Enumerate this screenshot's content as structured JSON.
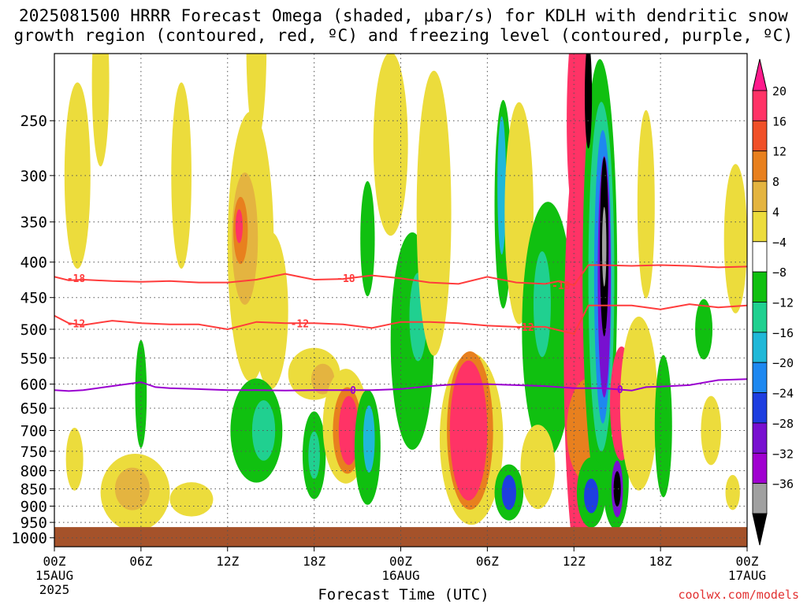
{
  "title": {
    "line1": "2025081500 HRRR Forecast Omega (shaded, μbar/s) for KDLH with dendritic snow",
    "line2": "growth region (contoured, red, ºC) and freezing level (contoured, purple, ºC)"
  },
  "credit": "coolwx.com/models",
  "chart_data": {
    "type": "heatmap",
    "xlabel": "Forecast Time (UTC)",
    "ylabel": "",
    "x_range_hours": [
      0,
      48
    ],
    "y_range_mb": [
      200,
      1030
    ],
    "y_scale": "log-pressure (top=low)",
    "y_ticks": [
      250,
      300,
      350,
      400,
      450,
      500,
      550,
      600,
      650,
      700,
      750,
      800,
      850,
      900,
      950,
      1000
    ],
    "x_ticks": [
      {
        "h": 0,
        "label": "00Z",
        "sub": "15AUG",
        "sub2": "2025"
      },
      {
        "h": 6,
        "label": "06Z"
      },
      {
        "h": 12,
        "label": "12Z"
      },
      {
        "h": 18,
        "label": "18Z"
      },
      {
        "h": 24,
        "label": "00Z",
        "sub": "16AUG"
      },
      {
        "h": 30,
        "label": "06Z"
      },
      {
        "h": 36,
        "label": "12Z"
      },
      {
        "h": 42,
        "label": "18Z"
      },
      {
        "h": 48,
        "label": "00Z",
        "sub": "17AUG"
      }
    ],
    "grid": true,
    "colorbar": {
      "labels": [
        "20",
        "16",
        "12",
        "8",
        "4",
        "−4",
        "−8",
        "−12",
        "−16",
        "−20",
        "−24",
        "−28",
        "−32",
        "−36"
      ],
      "colors": [
        "#ff3366",
        "#f05028",
        "#e8801e",
        "#e4b440",
        "#ecdc3c",
        "#ffffff",
        "#10c010",
        "#20d090",
        "#20b8d8",
        "#1e88f0",
        "#1e3ee0",
        "#7810d0",
        "#a000d0",
        "#a0a0a0",
        "#000000"
      ],
      "top_color": "#ff1a8c"
    },
    "ground_pressure_mb": 965,
    "ground_color": "#a5522a",
    "contours": [
      {
        "label": "-18",
        "color": "#ff3c3c",
        "points": [
          [
            0,
            420
          ],
          [
            1,
            425
          ],
          [
            2,
            424
          ],
          [
            4,
            426
          ],
          [
            6,
            427
          ],
          [
            8,
            426
          ],
          [
            10,
            428
          ],
          [
            12,
            428
          ],
          [
            14,
            424
          ],
          [
            16,
            416
          ],
          [
            18,
            424
          ],
          [
            20,
            423
          ],
          [
            22,
            418
          ],
          [
            24,
            422
          ],
          [
            26,
            428
          ],
          [
            28,
            430
          ],
          [
            30,
            420
          ],
          [
            32,
            428
          ],
          [
            34,
            430
          ],
          [
            35,
            426
          ],
          [
            36,
            432
          ],
          [
            37,
            404
          ],
          [
            38,
            404
          ],
          [
            40,
            405
          ],
          [
            42,
            404
          ],
          [
            44,
            405
          ],
          [
            46,
            407
          ],
          [
            48,
            406
          ]
        ]
      },
      {
        "label": "-12",
        "color": "#ff3c3c",
        "points": [
          [
            0,
            478
          ],
          [
            1,
            490
          ],
          [
            2,
            493
          ],
          [
            4,
            486
          ],
          [
            6,
            490
          ],
          [
            8,
            492
          ],
          [
            10,
            492
          ],
          [
            12,
            500
          ],
          [
            14,
            488
          ],
          [
            16,
            490
          ],
          [
            18,
            490
          ],
          [
            20,
            492
          ],
          [
            22,
            498
          ],
          [
            24,
            488
          ],
          [
            26,
            488
          ],
          [
            28,
            490
          ],
          [
            30,
            494
          ],
          [
            32,
            496
          ],
          [
            34,
            496
          ],
          [
            36,
            508
          ],
          [
            37,
            462
          ],
          [
            38,
            462
          ],
          [
            40,
            462
          ],
          [
            42,
            468
          ],
          [
            44,
            460
          ],
          [
            46,
            465
          ],
          [
            48,
            462
          ]
        ]
      },
      {
        "label": "0",
        "color": "#9a00d0",
        "points": [
          [
            0,
            612
          ],
          [
            1,
            614
          ],
          [
            2,
            612
          ],
          [
            4,
            604
          ],
          [
            6,
            596
          ],
          [
            7,
            606
          ],
          [
            8,
            608
          ],
          [
            10,
            610
          ],
          [
            12,
            612
          ],
          [
            14,
            612
          ],
          [
            16,
            613
          ],
          [
            18,
            612
          ],
          [
            20,
            612
          ],
          [
            22,
            612
          ],
          [
            24,
            610
          ],
          [
            26,
            604
          ],
          [
            28,
            600
          ],
          [
            30,
            600
          ],
          [
            32,
            602
          ],
          [
            34,
            604
          ],
          [
            36,
            608
          ],
          [
            38,
            608
          ],
          [
            40,
            613
          ],
          [
            41,
            606
          ],
          [
            42,
            605
          ],
          [
            44,
            602
          ],
          [
            46,
            592
          ],
          [
            48,
            590
          ]
        ]
      }
    ],
    "contour_labels": [
      {
        "text": "-18",
        "h": 1.5,
        "p": 422
      },
      {
        "text": "-18",
        "h": 20.2,
        "p": 422
      },
      {
        "text": "-18",
        "h": 35.1,
        "p": 432
      },
      {
        "text": "-12",
        "h": 1.5,
        "p": 490
      },
      {
        "text": "-12",
        "h": 17.0,
        "p": 490
      },
      {
        "text": "-12",
        "h": 32.6,
        "p": 496
      },
      {
        "text": "0",
        "h": 20.7,
        "p": 612
      },
      {
        "text": "0",
        "h": 39.2,
        "p": 610
      }
    ],
    "shaded_features": [
      {
        "level": 4,
        "h": 1.6,
        "p": 300,
        "dh": 0.9,
        "dp": 90
      },
      {
        "level": 4,
        "h": 3.2,
        "p": 220,
        "dh": 0.6,
        "dp": 60
      },
      {
        "level": 4,
        "h": 5.6,
        "p": 860,
        "dh": 2.4,
        "dp": 110
      },
      {
        "level": 8,
        "h": 5.4,
        "p": 850,
        "dh": 1.2,
        "dp": 60
      },
      {
        "level": 4,
        "h": 1.4,
        "p": 770,
        "dh": 0.6,
        "dp": 80
      },
      {
        "level": 4,
        "h": 8.8,
        "p": 300,
        "dh": 0.7,
        "dp": 90
      },
      {
        "level": -8,
        "h": 6.0,
        "p": 620,
        "dh": 0.4,
        "dp": 110
      },
      {
        "level": 4,
        "h": 13.6,
        "p": 380,
        "dh": 1.6,
        "dp": 160
      },
      {
        "level": 8,
        "h": 13.2,
        "p": 370,
        "dh": 0.9,
        "dp": 80
      },
      {
        "level": 12,
        "h": 12.9,
        "p": 360,
        "dh": 0.5,
        "dp": 40
      },
      {
        "level": 20,
        "h": 12.8,
        "p": 355,
        "dh": 0.25,
        "dp": 20
      },
      {
        "level": 4,
        "h": 15.0,
        "p": 470,
        "dh": 1.2,
        "dp": 120
      },
      {
        "level": 4,
        "h": 14.0,
        "p": 195,
        "dh": 0.7,
        "dp": 60
      },
      {
        "level": -8,
        "h": 14.0,
        "p": 700,
        "dh": 1.8,
        "dp": 120
      },
      {
        "level": -12,
        "h": 14.5,
        "p": 700,
        "dh": 0.8,
        "dp": 70
      },
      {
        "level": 4,
        "h": 9.5,
        "p": 880,
        "dh": 1.5,
        "dp": 50
      },
      {
        "level": 4,
        "h": 18.0,
        "p": 580,
        "dh": 1.8,
        "dp": 50
      },
      {
        "level": 8,
        "h": 18.6,
        "p": 590,
        "dh": 0.8,
        "dp": 30
      },
      {
        "level": -8,
        "h": 18.0,
        "p": 760,
        "dh": 0.8,
        "dp": 110
      },
      {
        "level": -12,
        "h": 18.0,
        "p": 760,
        "dh": 0.4,
        "dp": 60
      },
      {
        "level": 4,
        "h": 20.2,
        "p": 690,
        "dh": 1.6,
        "dp": 130
      },
      {
        "level": 12,
        "h": 20.3,
        "p": 700,
        "dh": 1.0,
        "dp": 100
      },
      {
        "level": 20,
        "h": 20.4,
        "p": 700,
        "dh": 0.7,
        "dp": 80
      },
      {
        "level": -8,
        "h": 21.7,
        "p": 740,
        "dh": 0.9,
        "dp": 140
      },
      {
        "level": -16,
        "h": 21.8,
        "p": 720,
        "dh": 0.4,
        "dp": 80
      },
      {
        "level": -8,
        "h": 21.7,
        "p": 370,
        "dh": 0.5,
        "dp": 70
      },
      {
        "level": 4,
        "h": 23.3,
        "p": 270,
        "dh": 1.2,
        "dp": 80
      },
      {
        "level": -8,
        "h": 24.8,
        "p": 520,
        "dh": 1.5,
        "dp": 180
      },
      {
        "level": -12,
        "h": 25.2,
        "p": 480,
        "dh": 0.6,
        "dp": 70
      },
      {
        "level": 4,
        "h": 26.3,
        "p": 340,
        "dh": 1.2,
        "dp": 150
      },
      {
        "level": 4,
        "h": 28.9,
        "p": 720,
        "dh": 2.2,
        "dp": 200
      },
      {
        "level": 12,
        "h": 28.8,
        "p": 700,
        "dh": 1.6,
        "dp": 180
      },
      {
        "level": 20,
        "h": 28.7,
        "p": 700,
        "dh": 1.3,
        "dp": 160
      },
      {
        "level": -8,
        "h": 31.5,
        "p": 860,
        "dh": 1.0,
        "dp": 80
      },
      {
        "level": -24,
        "h": 31.5,
        "p": 860,
        "dh": 0.5,
        "dp": 50
      },
      {
        "level": -8,
        "h": 31.1,
        "p": 330,
        "dh": 0.6,
        "dp": 110
      },
      {
        "level": -16,
        "h": 31.0,
        "p": 310,
        "dh": 0.3,
        "dp": 70
      },
      {
        "level": 4,
        "h": 32.2,
        "p": 340,
        "dh": 1.0,
        "dp": 120
      },
      {
        "level": -8,
        "h": 34.2,
        "p": 500,
        "dh": 1.8,
        "dp": 200
      },
      {
        "level": -12,
        "h": 33.8,
        "p": 460,
        "dh": 0.6,
        "dp": 80
      },
      {
        "level": 4,
        "h": 33.5,
        "p": 790,
        "dh": 1.2,
        "dp": 110
      },
      {
        "level": 20,
        "h": 36.5,
        "p": 540,
        "dh": 1.2,
        "dp": 340
      },
      {
        "level": 20,
        "h": 36.3,
        "p": 250,
        "dh": 0.8,
        "dp": 90
      },
      {
        "level": 12,
        "h": 37.0,
        "p": 700,
        "dh": 1.5,
        "dp": 120
      },
      {
        "level": -8,
        "h": 37.8,
        "p": 420,
        "dh": 1.2,
        "dp": 260
      },
      {
        "level": -12,
        "h": 37.9,
        "p": 420,
        "dh": 0.9,
        "dp": 220
      },
      {
        "level": -20,
        "h": 38.0,
        "p": 420,
        "dh": 0.6,
        "dp": 190
      },
      {
        "level": -28,
        "h": 38.1,
        "p": 420,
        "dh": 0.45,
        "dp": 160
      },
      {
        "level": -36,
        "h": 38.1,
        "p": 380,
        "dh": 0.3,
        "dp": 110
      },
      {
        "level": -32,
        "h": 38.1,
        "p": 380,
        "dh": 0.15,
        "dp": 50
      },
      {
        "level": -36,
        "h": 37.0,
        "p": 230,
        "dh": 0.25,
        "dp": 40
      },
      {
        "level": -8,
        "h": 37.2,
        "p": 860,
        "dh": 1.0,
        "dp": 100
      },
      {
        "level": -24,
        "h": 37.2,
        "p": 870,
        "dh": 0.5,
        "dp": 50
      },
      {
        "level": -8,
        "h": 38.9,
        "p": 830,
        "dh": 0.9,
        "dp": 130
      },
      {
        "level": -28,
        "h": 39.0,
        "p": 850,
        "dh": 0.4,
        "dp": 80
      },
      {
        "level": -36,
        "h": 39.0,
        "p": 850,
        "dh": 0.25,
        "dp": 50
      },
      {
        "level": 20,
        "h": 39.3,
        "p": 640,
        "dh": 0.8,
        "dp": 120
      },
      {
        "level": 4,
        "h": 40.5,
        "p": 640,
        "dh": 1.3,
        "dp": 180
      },
      {
        "level": 4,
        "h": 41.0,
        "p": 330,
        "dh": 0.6,
        "dp": 100
      },
      {
        "level": -8,
        "h": 42.2,
        "p": 690,
        "dh": 0.6,
        "dp": 160
      },
      {
        "level": -8,
        "h": 45.0,
        "p": 500,
        "dh": 0.6,
        "dp": 50
      },
      {
        "level": 4,
        "h": 47.2,
        "p": 370,
        "dh": 0.8,
        "dp": 90
      },
      {
        "level": 4,
        "h": 45.5,
        "p": 700,
        "dh": 0.7,
        "dp": 80
      },
      {
        "level": 4,
        "h": 47.0,
        "p": 860,
        "dh": 0.5,
        "dp": 50
      }
    ]
  }
}
